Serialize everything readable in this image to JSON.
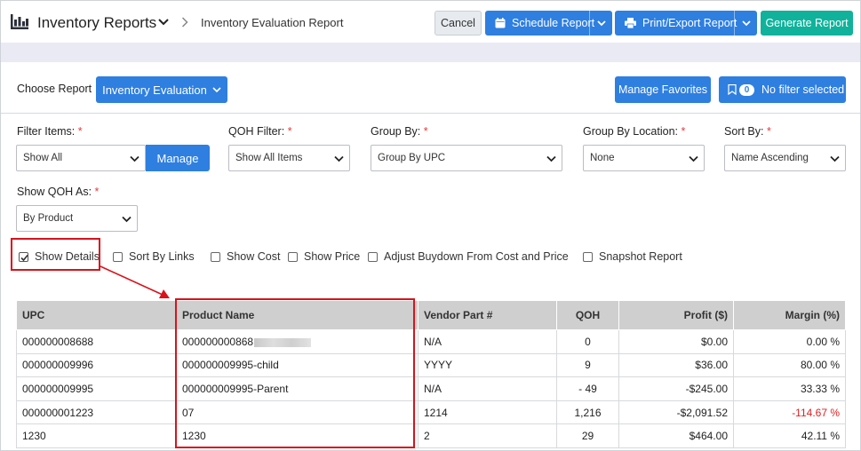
{
  "header": {
    "app_title": "Inventory Reports",
    "breadcrumb": "Inventory Evaluation Report",
    "buttons": {
      "cancel": "Cancel",
      "schedule": "Schedule Report",
      "print_export": "Print/Export Report",
      "generate": "Generate Report"
    }
  },
  "report_selector": {
    "label": "Choose Report",
    "selected": "Inventory Evaluation",
    "manage_favorites": "Manage Favorites",
    "filter_count": "0",
    "filter_status": "No filter selected"
  },
  "filters": {
    "filter_items": {
      "label": "Filter Items:",
      "value": "Show All",
      "manage": "Manage"
    },
    "qoh_filter": {
      "label": "QOH Filter:",
      "value": "Show All Items"
    },
    "group_by": {
      "label": "Group By:",
      "value": "Group By UPC"
    },
    "group_by_location": {
      "label": "Group By Location:",
      "value": "None"
    },
    "sort_by": {
      "label": "Sort By:",
      "value": "Name Ascending"
    },
    "show_qoh_as": {
      "label": "Show QOH As:",
      "value": "By Product"
    },
    "required_mark": "*"
  },
  "options": [
    {
      "label": "Show Details",
      "checked": true
    },
    {
      "label": "Sort By Links",
      "checked": false
    },
    {
      "label": "Show Cost",
      "checked": false
    },
    {
      "label": "Show Price",
      "checked": false
    },
    {
      "label": "Adjust Buydown From Cost and Price",
      "checked": false
    },
    {
      "label": "Snapshot Report",
      "checked": false
    }
  ],
  "table": {
    "headers": [
      "UPC",
      "Product Name",
      "Vendor Part #",
      "QOH",
      "Profit ($)",
      "Margin (%)"
    ],
    "rows": [
      [
        "000000008688",
        "000000000868",
        "N/A",
        "0",
        "$0.00",
        "0.00 %"
      ],
      [
        "000000009996",
        "000000009995-child",
        "YYYY",
        "9",
        "$36.00",
        "80.00 %"
      ],
      [
        "000000009995",
        "000000009995-Parent",
        "N/A",
        "- 49",
        "-$245.00",
        "33.33 %"
      ],
      [
        "000000001223",
        "07",
        "1214",
        "1,216",
        "-$2,091.52",
        "-114.67 %"
      ],
      [
        "1230",
        "1230",
        "2",
        "29",
        "$464.00",
        "42.11 %"
      ]
    ]
  },
  "colors": {
    "primary": "#2e7fe0",
    "success": "#10b29b",
    "highlight": "#d9121b",
    "negative": "#e02020"
  }
}
